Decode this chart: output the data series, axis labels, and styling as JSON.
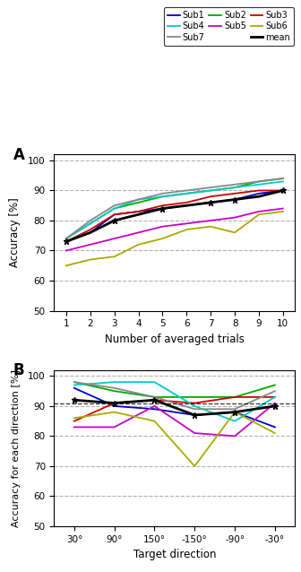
{
  "panel_A": {
    "x": [
      1,
      2,
      3,
      4,
      5,
      6,
      7,
      8,
      9,
      10
    ],
    "sub1": [
      73,
      76,
      82,
      83,
      84,
      85,
      86,
      87,
      89,
      90
    ],
    "sub2": [
      74,
      79,
      84,
      86,
      88,
      89,
      90,
      91,
      93,
      94
    ],
    "sub3": [
      73,
      77,
      82,
      83,
      85,
      86,
      88,
      89,
      90,
      90
    ],
    "sub4": [
      74,
      79,
      84,
      87,
      88,
      89,
      90,
      91,
      92,
      93
    ],
    "sub5": [
      70,
      72,
      74,
      76,
      78,
      79,
      80,
      81,
      83,
      84
    ],
    "sub6": [
      65,
      67,
      68,
      72,
      74,
      77,
      78,
      76,
      82,
      83
    ],
    "sub7": [
      74,
      80,
      85,
      87,
      89,
      90,
      91,
      92,
      93,
      94
    ],
    "mean": [
      73,
      76,
      80,
      82,
      84,
      85,
      86,
      87,
      88,
      90
    ],
    "mean_markers": [
      1,
      3,
      5,
      7,
      8,
      10
    ]
  },
  "panel_B": {
    "x_labels": [
      "30°",
      "90°",
      "150°",
      "-150°",
      "-90°",
      "-30°"
    ],
    "x": [
      0,
      1,
      2,
      3,
      4,
      5
    ],
    "sub1": [
      96,
      90,
      89,
      87,
      88,
      83
    ],
    "sub2": [
      98,
      95,
      93,
      93,
      93,
      97
    ],
    "sub3": [
      85,
      91,
      92,
      91,
      93,
      93
    ],
    "sub4": [
      97,
      98,
      98,
      90,
      85,
      93
    ],
    "sub5": [
      83,
      83,
      90,
      81,
      80,
      91
    ],
    "sub6": [
      86,
      88,
      85,
      70,
      88,
      81
    ],
    "sub7": [
      98,
      96,
      93,
      89,
      89,
      95
    ],
    "mean": [
      92,
      91,
      92,
      87,
      88,
      90
    ],
    "mean_markers": [
      0,
      1,
      2,
      3,
      4,
      5
    ]
  },
  "colors": {
    "sub1": "#0000CC",
    "sub2": "#00AA00",
    "sub3": "#CC0000",
    "sub4": "#00CCCC",
    "sub5": "#CC00CC",
    "sub6": "#AAAA00",
    "sub7": "#888888",
    "mean": "#000000"
  },
  "ylim_A": [
    50,
    102
  ],
  "yticks_A": [
    50,
    60,
    70,
    80,
    90,
    100
  ],
  "ylim_B": [
    50,
    102
  ],
  "yticks_B": [
    50,
    60,
    70,
    80,
    90,
    100
  ],
  "legend_entries": [
    [
      "Sub1",
      "sub1"
    ],
    [
      "Sub4",
      "sub4"
    ],
    [
      "Sub7",
      "sub7"
    ],
    [
      "Sub2",
      "sub2"
    ],
    [
      "Sub5",
      "sub5"
    ],
    [
      "Sub3",
      "sub3"
    ],
    [
      "Sub6",
      "sub6"
    ],
    [
      "mean",
      "mean"
    ]
  ]
}
